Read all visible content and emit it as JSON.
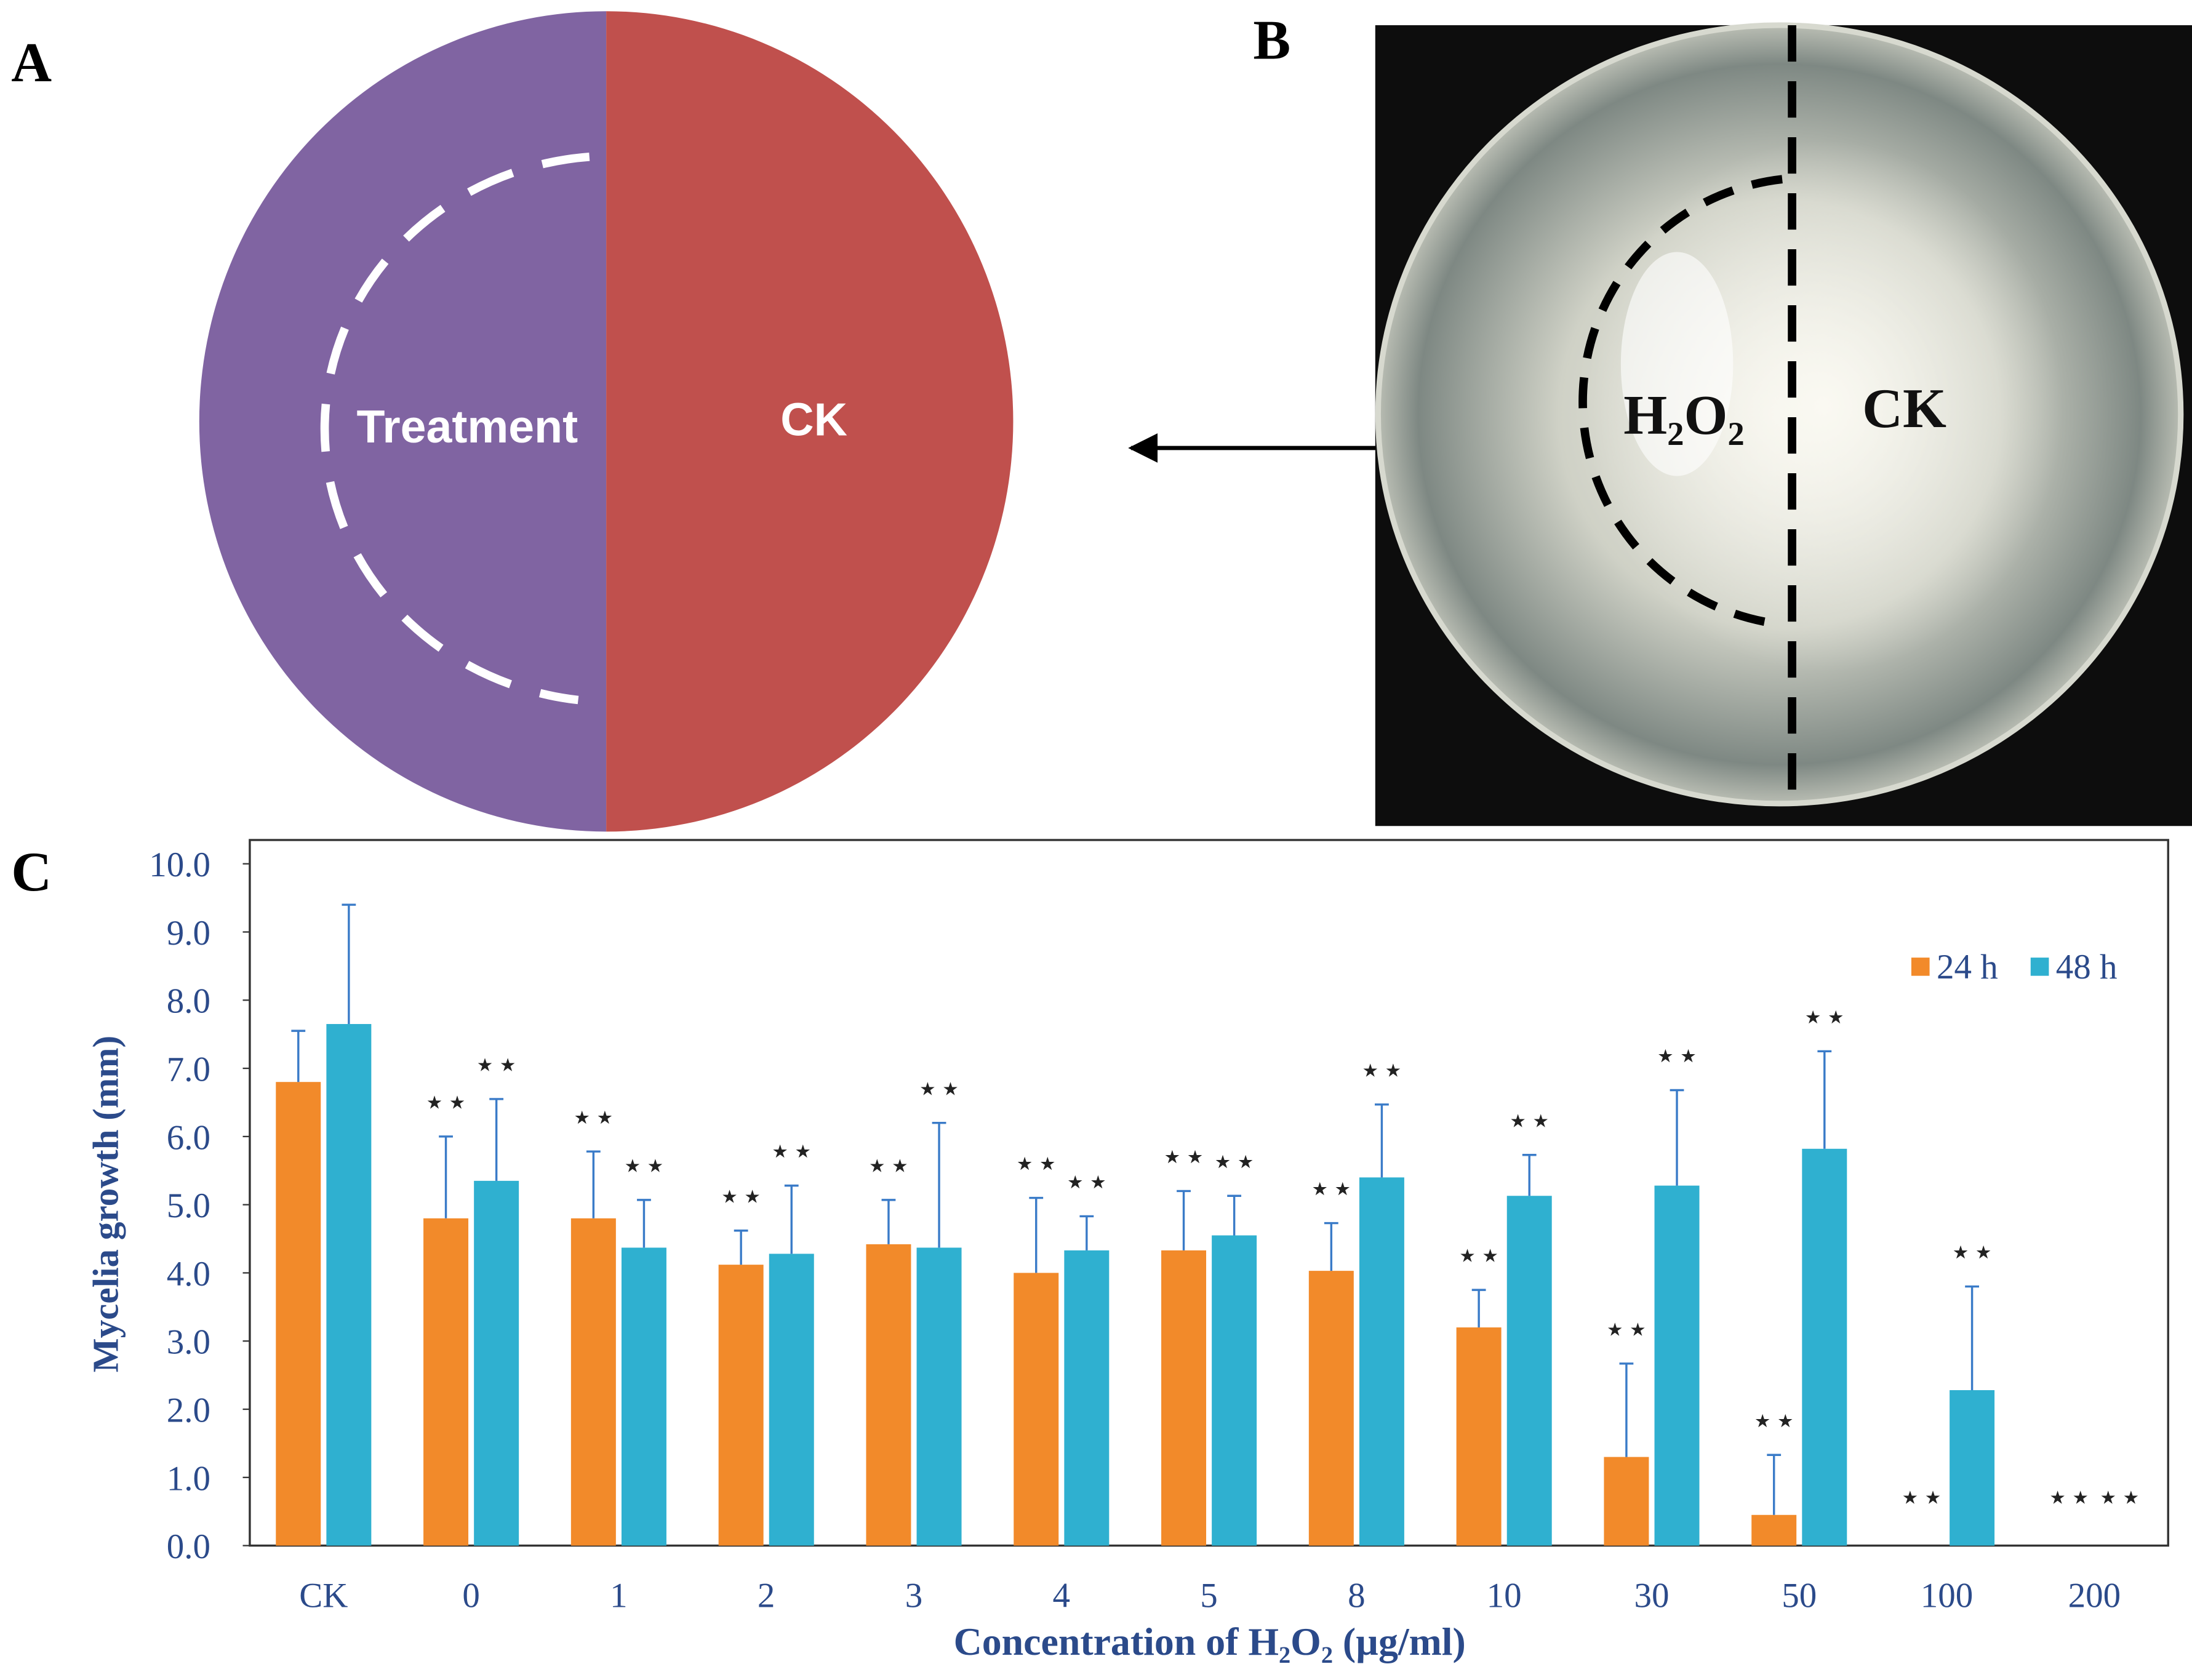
{
  "panels": {
    "a": "A",
    "b": "B",
    "c": "C"
  },
  "diagram": {
    "treatment": "Treatment",
    "ck": "CK"
  },
  "photo": {
    "h2o2": "H₂O₂",
    "ck": "CK"
  },
  "chart_data": {
    "type": "bar",
    "x_label": "Concentration of H₂O₂ (µg/ml)",
    "y_label": "Mycelia growth (mm)",
    "categories": [
      "CK",
      "0",
      "1",
      "2",
      "3",
      "4",
      "5",
      "8",
      "10",
      "30",
      "50",
      "100",
      "200"
    ],
    "series": [
      {
        "name": "24 h",
        "color": "#f28a2a",
        "values": [
          6.8,
          4.8,
          4.8,
          4.12,
          4.42,
          4.0,
          4.33,
          4.03,
          3.2,
          1.3,
          0.45,
          0,
          0
        ],
        "errors": [
          0.75,
          1.2,
          0.98,
          0.5,
          0.65,
          1.1,
          0.87,
          0.7,
          0.55,
          1.37,
          0.88,
          null,
          null
        ],
        "significance": [
          null,
          "⋆⋆",
          "⋆⋆",
          "⋆⋆",
          "⋆⋆",
          "⋆⋆",
          "⋆⋆",
          "⋆⋆",
          "⋆⋆",
          "⋆⋆",
          "⋆⋆",
          "⋆⋆",
          "⋆⋆"
        ]
      },
      {
        "name": "48 h",
        "color": "#2fb0d0",
        "values": [
          7.65,
          5.35,
          4.37,
          4.28,
          4.37,
          4.33,
          4.55,
          5.4,
          5.13,
          5.28,
          5.82,
          2.28,
          0
        ],
        "errors": [
          1.75,
          1.2,
          0.7,
          1.0,
          1.83,
          0.5,
          0.58,
          1.07,
          0.6,
          1.4,
          1.43,
          1.52,
          null
        ],
        "significance": [
          null,
          "⋆⋆",
          "⋆⋆",
          "⋆⋆",
          "⋆⋆",
          "⋆⋆",
          "⋆⋆",
          "⋆⋆",
          "⋆⋆",
          "⋆⋆",
          "⋆⋆",
          "⋆⋆",
          "⋆⋆"
        ]
      }
    ],
    "ylim": [
      0,
      10
    ],
    "yticks": [
      {
        "value": 0,
        "label": "0.0"
      },
      {
        "value": 1,
        "label": "1.0"
      },
      {
        "value": 2,
        "label": "2.0"
      },
      {
        "value": 3,
        "label": "3.0"
      },
      {
        "value": 4,
        "label": "4.0"
      },
      {
        "value": 5,
        "label": "5.0"
      },
      {
        "value": 6,
        "label": "6.0"
      },
      {
        "value": 7,
        "label": "7.0"
      },
      {
        "value": 8,
        "label": "8.0"
      },
      {
        "value": 9,
        "label": "9.0"
      },
      {
        "value": 10,
        "label": "10.0"
      }
    ],
    "error_color": "#3a7bc8",
    "legend": "top-right"
  }
}
